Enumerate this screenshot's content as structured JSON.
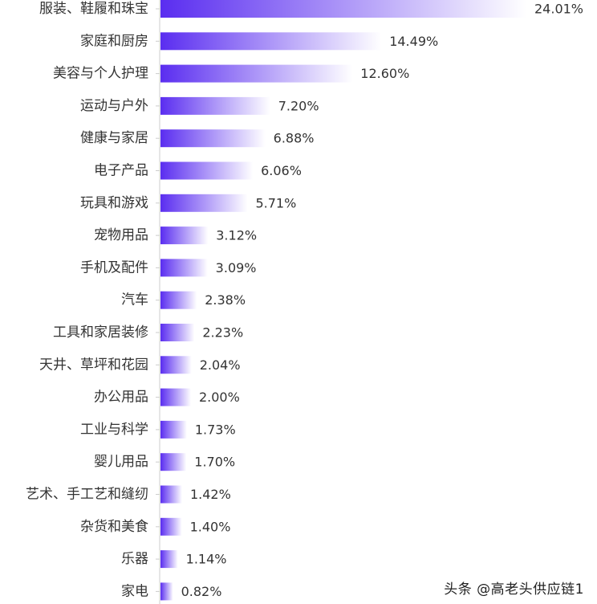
{
  "chart_data": {
    "type": "bar",
    "orientation": "horizontal",
    "title": "",
    "xlabel": "",
    "ylabel": "",
    "xlim": [
      0,
      24.01
    ],
    "grid": false,
    "legend": "none",
    "categories": [
      "服装、鞋履和珠宝",
      "家庭和厨房",
      "美容与个人护理",
      "运动与户外",
      "健康与家居",
      "电子产品",
      "玩具和游戏",
      "宠物用品",
      "手机及配件",
      "汽车",
      "工具和家居装修",
      "天井、草坪和花园",
      "办公用品",
      "工业与科学",
      "婴儿用品",
      "艺术、手工艺和缝纫",
      "杂货和美食",
      "乐器",
      "家电"
    ],
    "values": [
      24.01,
      14.49,
      12.6,
      7.2,
      6.88,
      6.06,
      5.71,
      3.12,
      3.09,
      2.38,
      2.23,
      2.04,
      2.0,
      1.73,
      1.7,
      1.42,
      1.4,
      1.14,
      0.82
    ],
    "value_labels": [
      "24.01%",
      "14.49%",
      "12.60%",
      "7.20%",
      "6.88%",
      "6.06%",
      "5.71%",
      "3.12%",
      "3.09%",
      "2.38%",
      "2.23%",
      "2.04%",
      "2.00%",
      "1.73%",
      "1.70%",
      "1.42%",
      "1.40%",
      "1.14%",
      "0.82%"
    ],
    "colors": {
      "bar_start": "#5a2df0",
      "bar_end": "#ffffff",
      "axis": "#cccccc"
    }
  },
  "watermark": "头条 @高老头供应链1"
}
